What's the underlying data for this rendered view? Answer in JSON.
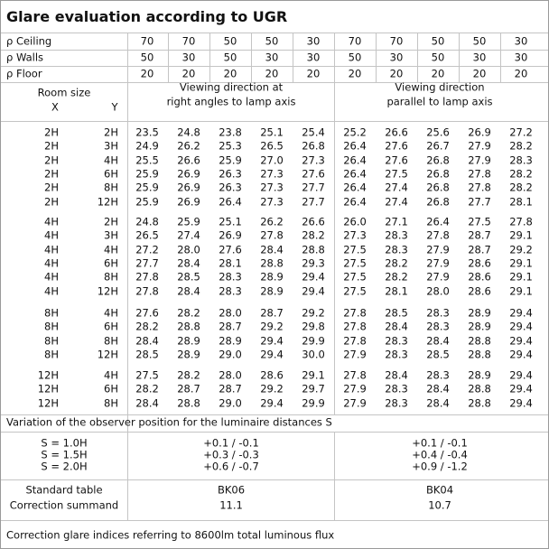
{
  "title": "Glare evaluation according to UGR",
  "reflectances": [
    {
      "label": "ρ Ceiling",
      "values": [
        70,
        70,
        50,
        50,
        30,
        70,
        70,
        50,
        50,
        30
      ]
    },
    {
      "label": "ρ Walls",
      "values": [
        50,
        30,
        50,
        30,
        30,
        50,
        30,
        50,
        30,
        30
      ]
    },
    {
      "label": "ρ Floor",
      "values": [
        20,
        20,
        20,
        20,
        20,
        20,
        20,
        20,
        20,
        20
      ]
    }
  ],
  "header": {
    "room_size": "Room size",
    "x": "X",
    "y": "Y",
    "perpendicular": [
      "Viewing direction at",
      "right angles to lamp axis"
    ],
    "parallel": [
      "Viewing direction",
      "parallel to lamp axis"
    ]
  },
  "groups": [
    {
      "rows": [
        {
          "x": "2H",
          "y": "2H",
          "values": [
            "23.5",
            "24.8",
            "23.8",
            "25.1",
            "25.4",
            "25.2",
            "26.6",
            "25.6",
            "26.9",
            "27.2"
          ]
        },
        {
          "x": "2H",
          "y": "3H",
          "values": [
            "24.9",
            "26.2",
            "25.3",
            "26.5",
            "26.8",
            "26.4",
            "27.6",
            "26.7",
            "27.9",
            "28.2"
          ]
        },
        {
          "x": "2H",
          "y": "4H",
          "values": [
            "25.5",
            "26.6",
            "25.9",
            "27.0",
            "27.3",
            "26.4",
            "27.6",
            "26.8",
            "27.9",
            "28.3"
          ]
        },
        {
          "x": "2H",
          "y": "6H",
          "values": [
            "25.9",
            "26.9",
            "26.3",
            "27.3",
            "27.6",
            "26.4",
            "27.5",
            "26.8",
            "27.8",
            "28.2"
          ]
        },
        {
          "x": "2H",
          "y": "8H",
          "values": [
            "25.9",
            "26.9",
            "26.3",
            "27.3",
            "27.7",
            "26.4",
            "27.4",
            "26.8",
            "27.8",
            "28.2"
          ]
        },
        {
          "x": "2H",
          "y": "12H",
          "values": [
            "25.9",
            "26.9",
            "26.4",
            "27.3",
            "27.7",
            "26.4",
            "27.4",
            "26.8",
            "27.7",
            "28.1"
          ]
        }
      ]
    },
    {
      "rows": [
        {
          "x": "4H",
          "y": "2H",
          "values": [
            "24.8",
            "25.9",
            "25.1",
            "26.2",
            "26.6",
            "26.0",
            "27.1",
            "26.4",
            "27.5",
            "27.8"
          ]
        },
        {
          "x": "4H",
          "y": "3H",
          "values": [
            "26.5",
            "27.4",
            "26.9",
            "27.8",
            "28.2",
            "27.3",
            "28.3",
            "27.8",
            "28.7",
            "29.1"
          ]
        },
        {
          "x": "4H",
          "y": "4H",
          "values": [
            "27.2",
            "28.0",
            "27.6",
            "28.4",
            "28.8",
            "27.5",
            "28.3",
            "27.9",
            "28.7",
            "29.2"
          ]
        },
        {
          "x": "4H",
          "y": "6H",
          "values": [
            "27.7",
            "28.4",
            "28.1",
            "28.8",
            "29.3",
            "27.5",
            "28.2",
            "27.9",
            "28.6",
            "29.1"
          ]
        },
        {
          "x": "4H",
          "y": "8H",
          "values": [
            "27.8",
            "28.5",
            "28.3",
            "28.9",
            "29.4",
            "27.5",
            "28.2",
            "27.9",
            "28.6",
            "29.1"
          ]
        },
        {
          "x": "4H",
          "y": "12H",
          "values": [
            "27.8",
            "28.4",
            "28.3",
            "28.9",
            "29.4",
            "27.5",
            "28.1",
            "28.0",
            "28.6",
            "29.1"
          ]
        }
      ]
    },
    {
      "rows": [
        {
          "x": "8H",
          "y": "4H",
          "values": [
            "27.6",
            "28.2",
            "28.0",
            "28.7",
            "29.2",
            "27.8",
            "28.5",
            "28.3",
            "28.9",
            "29.4"
          ]
        },
        {
          "x": "8H",
          "y": "6H",
          "values": [
            "28.2",
            "28.8",
            "28.7",
            "29.2",
            "29.8",
            "27.8",
            "28.4",
            "28.3",
            "28.9",
            "29.4"
          ]
        },
        {
          "x": "8H",
          "y": "8H",
          "values": [
            "28.4",
            "28.9",
            "28.9",
            "29.4",
            "29.9",
            "27.8",
            "28.3",
            "28.4",
            "28.8",
            "29.4"
          ]
        },
        {
          "x": "8H",
          "y": "12H",
          "values": [
            "28.5",
            "28.9",
            "29.0",
            "29.4",
            "30.0",
            "27.9",
            "28.3",
            "28.5",
            "28.8",
            "29.4"
          ]
        }
      ]
    },
    {
      "rows": [
        {
          "x": "12H",
          "y": "4H",
          "values": [
            "27.5",
            "28.2",
            "28.0",
            "28.6",
            "29.1",
            "27.8",
            "28.4",
            "28.3",
            "28.9",
            "29.4"
          ]
        },
        {
          "x": "12H",
          "y": "6H",
          "values": [
            "28.2",
            "28.7",
            "28.7",
            "29.2",
            "29.7",
            "27.9",
            "28.3",
            "28.4",
            "28.8",
            "29.4"
          ]
        },
        {
          "x": "12H",
          "y": "8H",
          "values": [
            "28.4",
            "28.8",
            "29.0",
            "29.4",
            "29.9",
            "27.9",
            "28.3",
            "28.4",
            "28.8",
            "29.4"
          ]
        }
      ]
    }
  ],
  "variation": {
    "title": "Variation of the observer position for the luminaire distances S",
    "rows": [
      {
        "label": "S = 1.0H",
        "perpendicular": "+0.1 / -0.1",
        "parallel": "+0.1 / -0.1"
      },
      {
        "label": "S = 1.5H",
        "perpendicular": "+0.3 / -0.3",
        "parallel": "+0.4 / -0.4"
      },
      {
        "label": "S = 2.0H",
        "perpendicular": "+0.6 / -0.7",
        "parallel": "+0.9 / -1.2"
      }
    ]
  },
  "standard_table": {
    "label": "Standard table",
    "perpendicular": "BK06",
    "parallel": "BK04"
  },
  "correction_summand": {
    "label": "Correction summand",
    "perpendicular": "11.1",
    "parallel": "10.7"
  },
  "footer": "Correction glare indices referring to 8600lm total luminous flux"
}
